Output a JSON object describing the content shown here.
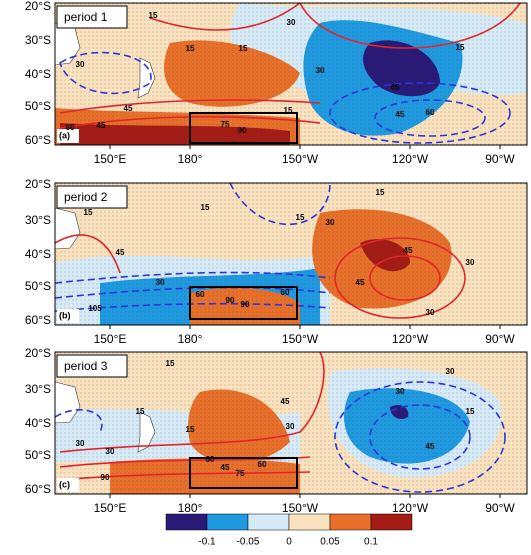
{
  "panels": [
    {
      "title": "period 1",
      "tag": "(a)",
      "contour_labels": [
        15,
        15,
        30,
        15,
        30,
        45,
        60,
        45,
        90,
        75,
        15,
        30,
        15,
        45,
        60,
        45
      ]
    },
    {
      "title": "period 2",
      "tag": "(b)",
      "contour_labels": [
        15,
        15,
        45,
        30,
        60,
        90,
        105,
        90,
        60,
        15,
        30,
        45,
        45,
        30,
        30,
        15
      ]
    },
    {
      "title": "period 3",
      "tag": "(c)",
      "contour_labels": [
        15,
        30,
        15,
        30,
        60,
        75,
        90,
        45,
        60,
        30,
        45,
        30,
        45,
        15,
        30,
        15
      ]
    }
  ],
  "lat_labels": [
    "20°S",
    "30°S",
    "40°S",
    "50°S",
    "60°S"
  ],
  "lon_labels": [
    "150°E",
    "180°",
    "150°W",
    "120°W",
    "90°W"
  ],
  "colorbar": {
    "ticks": [
      -0.1,
      -0.05,
      0,
      0.05,
      0.1
    ],
    "colors": [
      "#2a1a78",
      "#1f9ae0",
      "#d6ebf7",
      "#fbe2bf",
      "#e8702a",
      "#a41c15"
    ]
  }
}
